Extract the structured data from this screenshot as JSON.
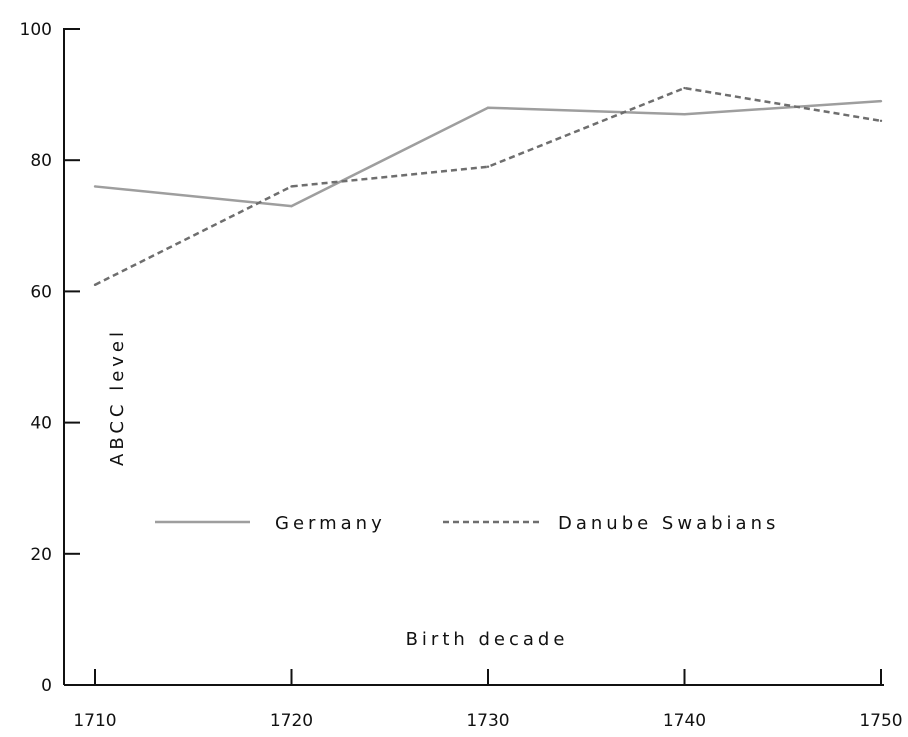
{
  "chart_data": {
    "type": "line",
    "title": "",
    "xlabel": "Birth decade",
    "ylabel": "ABCC level",
    "x": [
      1710,
      1720,
      1730,
      1740,
      1750
    ],
    "xticks": [
      "1710",
      "1720",
      "1730",
      "1740",
      "1750"
    ],
    "xlim": [
      1710,
      1750
    ],
    "ylim": [
      0,
      100
    ],
    "yticks": [
      "0",
      "20",
      "40",
      "60",
      "80",
      "100"
    ],
    "grid": false,
    "legend_position": "lower-center",
    "series": [
      {
        "name": "Germany",
        "values": [
          76,
          73,
          88,
          87,
          89
        ],
        "color": "#9e9e9e",
        "style": "solid"
      },
      {
        "name": "Danube Swabians",
        "values": [
          61,
          76,
          79,
          91,
          86
        ],
        "color": "#6e6e6e",
        "style": "dashed"
      }
    ]
  }
}
